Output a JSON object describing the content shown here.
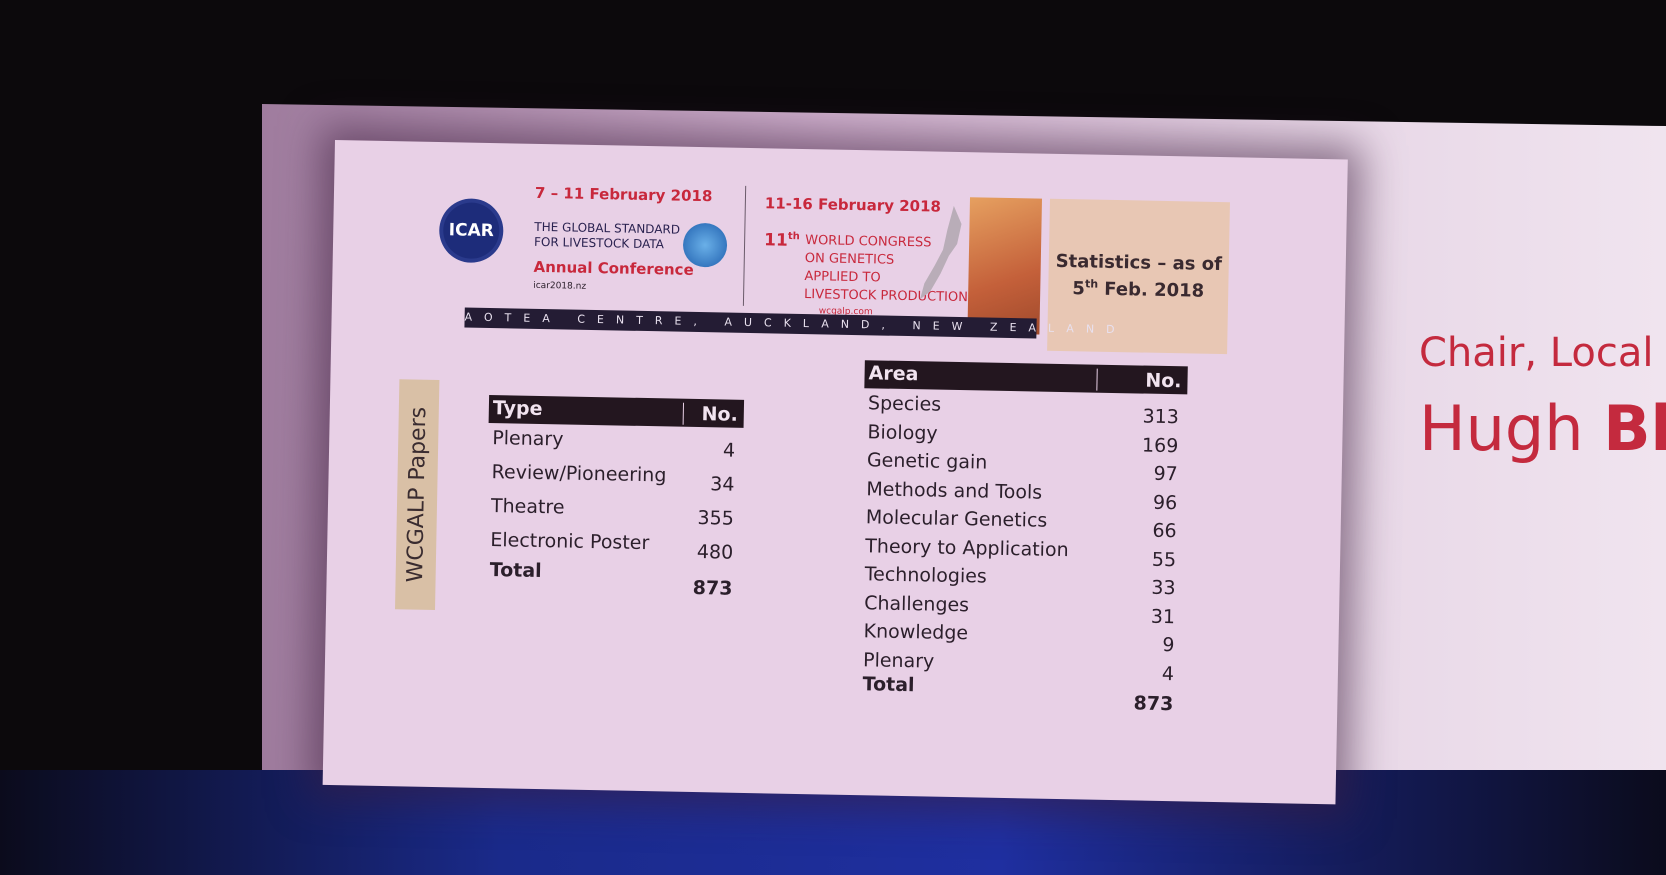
{
  "banner": {
    "icar": {
      "dates": "7 – 11 February 2018",
      "logo": "ICAR",
      "tagline": [
        "THE GLOBAL STANDARD",
        "FOR LIVESTOCK DATA"
      ],
      "event": "Annual Conference",
      "url": "icar2018.nz"
    },
    "wcgalp": {
      "dates": "11-16 February 2018",
      "edition": "11",
      "edition_suffix": "th",
      "title": [
        "WORLD CONGRESS",
        "ON GENETICS",
        "APPLIED TO",
        "LIVESTOCK PRODUCTION"
      ],
      "url": "wcgalp.com"
    },
    "venue": "AOTEA CENTRE, AUCKLAND, NEW ZEALAND",
    "stats": {
      "line1": "Statistics – as of",
      "day": "5",
      "day_suffix": "th",
      "date": "Feb. 2018"
    }
  },
  "side_label": "WCGALP Papers",
  "type_table": {
    "headers": [
      "Type",
      "No."
    ],
    "rows": [
      [
        "Plenary",
        4
      ],
      [
        "Review/Pioneering",
        34
      ],
      [
        "Theatre",
        355
      ],
      [
        "Electronic Poster",
        480
      ]
    ],
    "total": [
      "Total",
      873
    ]
  },
  "area_table": {
    "headers": [
      "Area",
      "No."
    ],
    "rows": [
      [
        "Species",
        313
      ],
      [
        "Biology",
        169
      ],
      [
        "Genetic gain",
        97
      ],
      [
        "Methods and Tools",
        96
      ],
      [
        "Molecular Genetics",
        66
      ],
      [
        "Theory to Application",
        55
      ],
      [
        "Technologies",
        33
      ],
      [
        "Challenges",
        31
      ],
      [
        "Knowledge",
        9
      ],
      [
        "Plenary",
        4
      ]
    ],
    "total": [
      "Total",
      873
    ]
  },
  "speaker": {
    "role": "Chair, Local",
    "first": "Hugh",
    "last": "Bl"
  }
}
